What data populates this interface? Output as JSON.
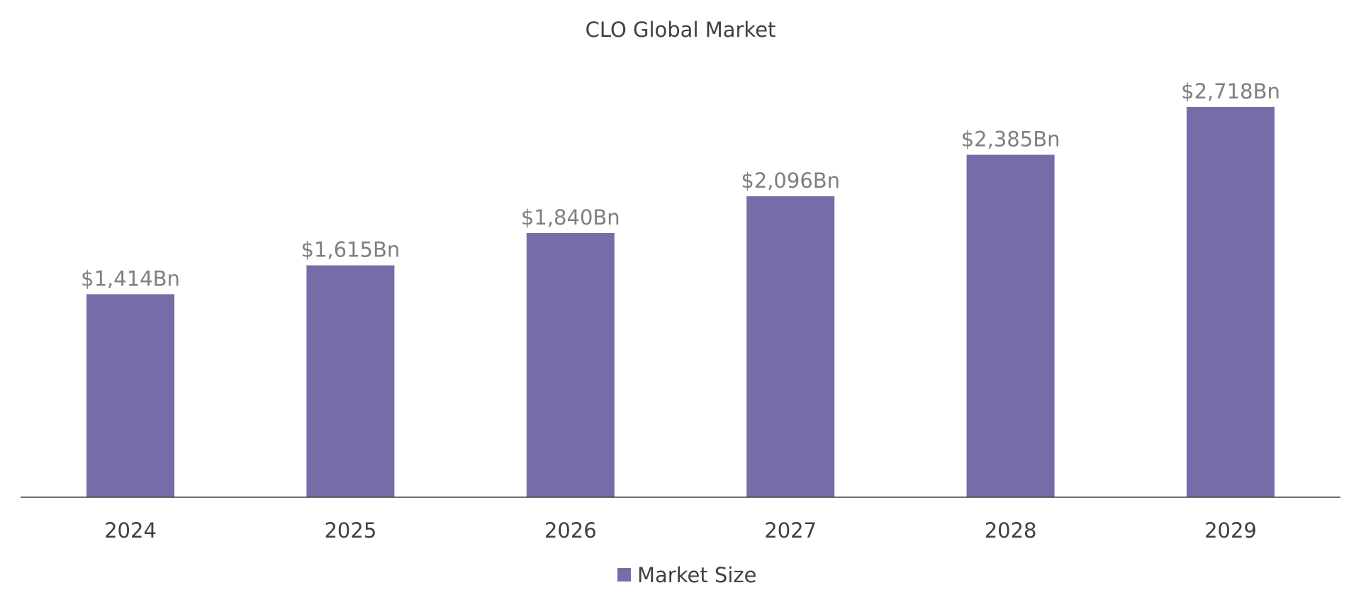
{
  "chart_data": {
    "type": "bar",
    "title": "CLO Global Market",
    "categories": [
      "2024",
      "2025",
      "2026",
      "2027",
      "2028",
      "2029"
    ],
    "series": [
      {
        "name": "Market Size",
        "values": [
          1414,
          1615,
          1840,
          2096,
          2385,
          2718
        ],
        "data_labels": [
          "$1,414Bn",
          "$1,615Bn",
          "$1,840Bn",
          "$2,096Bn",
          "$2,385Bn",
          "$2,718Bn"
        ],
        "color": "#776ca8"
      }
    ],
    "ylim": [
      0,
      2718
    ],
    "grid": false,
    "legend": "bottom-center",
    "axis_color": "#404040"
  }
}
